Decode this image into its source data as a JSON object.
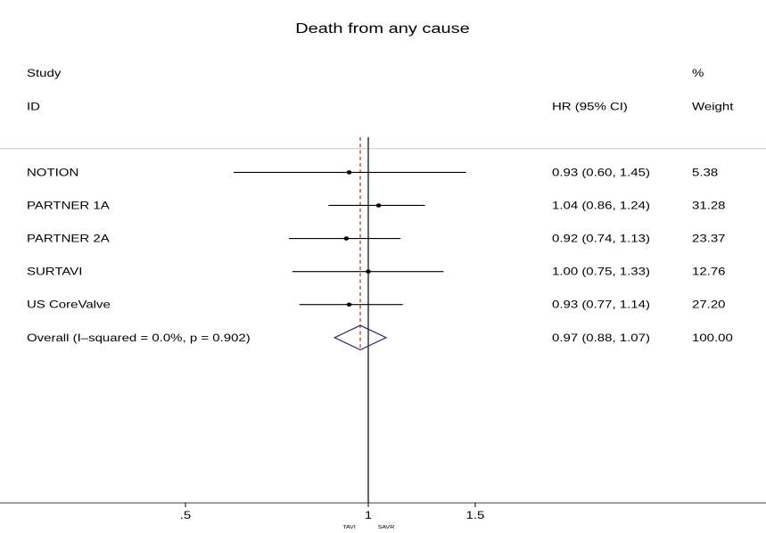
{
  "chart_data": {
    "type": "forest",
    "title": "Death from any cause",
    "header": {
      "study_line1": "Study",
      "study_line2": "ID",
      "effect_label": "HR (95% CI)",
      "weight_line1": "%",
      "weight_line2": "Weight"
    },
    "studies": [
      {
        "name": "NOTION",
        "hr": 0.93,
        "lo": 0.6,
        "hi": 1.45,
        "ci_text": "0.93 (0.60, 1.45)",
        "weight": "5.38"
      },
      {
        "name": "PARTNER 1A",
        "hr": 1.04,
        "lo": 0.86,
        "hi": 1.24,
        "ci_text": "1.04 (0.86, 1.24)",
        "weight": "31.28"
      },
      {
        "name": "PARTNER 2A",
        "hr": 0.92,
        "lo": 0.74,
        "hi": 1.13,
        "ci_text": "0.92 (0.74, 1.13)",
        "weight": "23.37"
      },
      {
        "name": "SURTAVI",
        "hr": 1.0,
        "lo": 0.75,
        "hi": 1.33,
        "ci_text": "1.00 (0.75, 1.33)",
        "weight": "12.76"
      },
      {
        "name": "US CoreValve",
        "hr": 0.93,
        "lo": 0.77,
        "hi": 1.14,
        "ci_text": "0.93 (0.77, 1.14)",
        "weight": "27.20"
      }
    ],
    "overall": {
      "name": "Overall  (I–squared = 0.0%, p = 0.902)",
      "hr": 0.97,
      "lo": 0.88,
      "hi": 1.07,
      "ci_text": "0.97 (0.88, 1.07)",
      "weight": "100.00"
    },
    "x_ticks": [
      {
        "value": 0.5,
        "label": ".5"
      },
      {
        "value": 1,
        "label": "1"
      },
      {
        "value": 1.5,
        "label": "1.5"
      }
    ],
    "x_scale": "log",
    "null_line": 1,
    "favors_left": "TAVI",
    "favors_right": "SAVR",
    "colors": {
      "diamond": "#2e2a6e",
      "overall_line": "#c0392b",
      "text": "#000000"
    }
  }
}
